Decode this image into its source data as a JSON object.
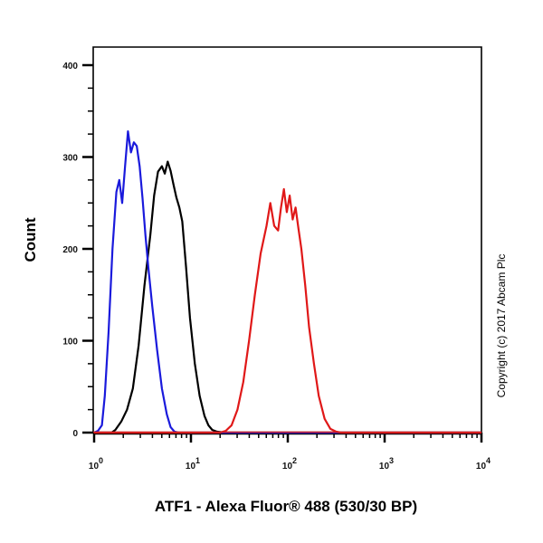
{
  "chart_data": {
    "type": "line",
    "title": "",
    "xlabel": "ATF1 - Alexa Fluor® 488 (530/30 BP)",
    "ylabel": "Count",
    "xscale": "log",
    "xlim": [
      1,
      10000
    ],
    "ylim": [
      0,
      400
    ],
    "x_ticks": [
      {
        "base": "10",
        "exp": "0",
        "value": 1
      },
      {
        "base": "10",
        "exp": "1",
        "value": 10
      },
      {
        "base": "10",
        "exp": "2",
        "value": 100
      },
      {
        "base": "10",
        "exp": "3",
        "value": 1000
      },
      {
        "base": "10",
        "exp": "4",
        "value": 10000
      }
    ],
    "y_ticks": [
      "0",
      "100",
      "200",
      "300",
      "400"
    ],
    "grid": false,
    "legend": null,
    "annotation": "Copyright (c) 2017 Abcam Plc",
    "series": [
      {
        "name": "blue",
        "color": "#1a1adc",
        "log10_x": [
          0.0,
          0.04,
          0.08,
          0.11,
          0.15,
          0.19,
          0.23,
          0.26,
          0.29,
          0.32,
          0.35,
          0.38,
          0.41,
          0.44,
          0.47,
          0.5,
          0.53,
          0.56,
          0.6,
          0.65,
          0.7,
          0.75,
          0.79,
          0.83,
          0.87,
          0.92,
          1.0,
          4.0
        ],
        "y": [
          0,
          2,
          8,
          40,
          110,
          200,
          262,
          275,
          250,
          290,
          328,
          305,
          316,
          312,
          290,
          255,
          215,
          180,
          138,
          90,
          48,
          20,
          6,
          1,
          0,
          0,
          0,
          0
        ]
      },
      {
        "name": "black",
        "color": "#000000",
        "log10_x": [
          0.0,
          0.18,
          0.22,
          0.28,
          0.34,
          0.4,
          0.46,
          0.52,
          0.58,
          0.62,
          0.66,
          0.7,
          0.73,
          0.76,
          0.79,
          0.82,
          0.85,
          0.88,
          0.91,
          0.95,
          0.99,
          1.04,
          1.09,
          1.14,
          1.18,
          1.22,
          1.27,
          1.35,
          4.0
        ],
        "y": [
          0,
          0,
          3,
          12,
          25,
          48,
          95,
          160,
          215,
          258,
          284,
          290,
          282,
          295,
          285,
          270,
          256,
          245,
          230,
          180,
          125,
          75,
          40,
          18,
          8,
          3,
          1,
          0,
          0
        ]
      },
      {
        "name": "red",
        "color": "#e01818",
        "log10_x": [
          0.0,
          1.3,
          1.36,
          1.42,
          1.48,
          1.54,
          1.6,
          1.66,
          1.72,
          1.78,
          1.82,
          1.86,
          1.9,
          1.93,
          1.96,
          1.99,
          2.02,
          2.05,
          2.08,
          2.11,
          2.14,
          2.18,
          2.22,
          2.27,
          2.32,
          2.38,
          2.44,
          2.5,
          2.55,
          2.6,
          4.0
        ],
        "y": [
          0,
          0,
          2,
          8,
          25,
          55,
          100,
          150,
          195,
          225,
          250,
          225,
          220,
          245,
          265,
          240,
          258,
          232,
          245,
          222,
          200,
          160,
          115,
          75,
          40,
          15,
          4,
          1,
          0,
          0,
          0
        ]
      }
    ]
  }
}
